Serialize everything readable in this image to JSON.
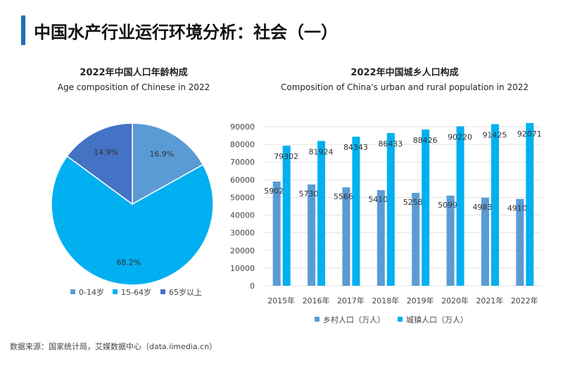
{
  "title": "中国水产行业运行环境分析：社会（一）",
  "source": "数据来源：国家统计局，艾媒数据中心（data.iimedia.cn）",
  "chart_data": [
    {
      "type": "pie",
      "title": "2022年中国人口年龄构成",
      "subtitle": "Age composition of Chinese in 2022",
      "categories": [
        "0-14岁",
        "15-64岁",
        "65岁以上"
      ],
      "values": [
        16.9,
        68.2,
        14.9
      ],
      "labels": [
        "16.9%",
        "68.2%",
        "14.9%"
      ],
      "colors": [
        "#5b9bd5",
        "#00b0f0",
        "#4472c4"
      ],
      "legend": "bottom"
    },
    {
      "type": "bar",
      "title": "2022年中国城乡人口构成",
      "subtitle": "Composition of China's urban and rural population in 2022",
      "categories": [
        "2015年",
        "2016年",
        "2017年",
        "2018年",
        "2019年",
        "2020年",
        "2021年",
        "2022年"
      ],
      "series": [
        {
          "name": "乡村人口（万人）",
          "color": "#5b9bd5",
          "values": [
            59024,
            57308,
            55668,
            54108,
            52582,
            50992,
            49835,
            49104
          ]
        },
        {
          "name": "城镇人口（万人）",
          "color": "#00b0f0",
          "values": [
            79302,
            81924,
            84343,
            86433,
            88426,
            90220,
            91425,
            92071
          ]
        }
      ],
      "ylim": [
        0,
        90000
      ],
      "yticks": [
        0,
        10000,
        20000,
        30000,
        40000,
        50000,
        60000,
        70000,
        80000,
        90000
      ],
      "grid": true,
      "legend": "bottom"
    }
  ]
}
